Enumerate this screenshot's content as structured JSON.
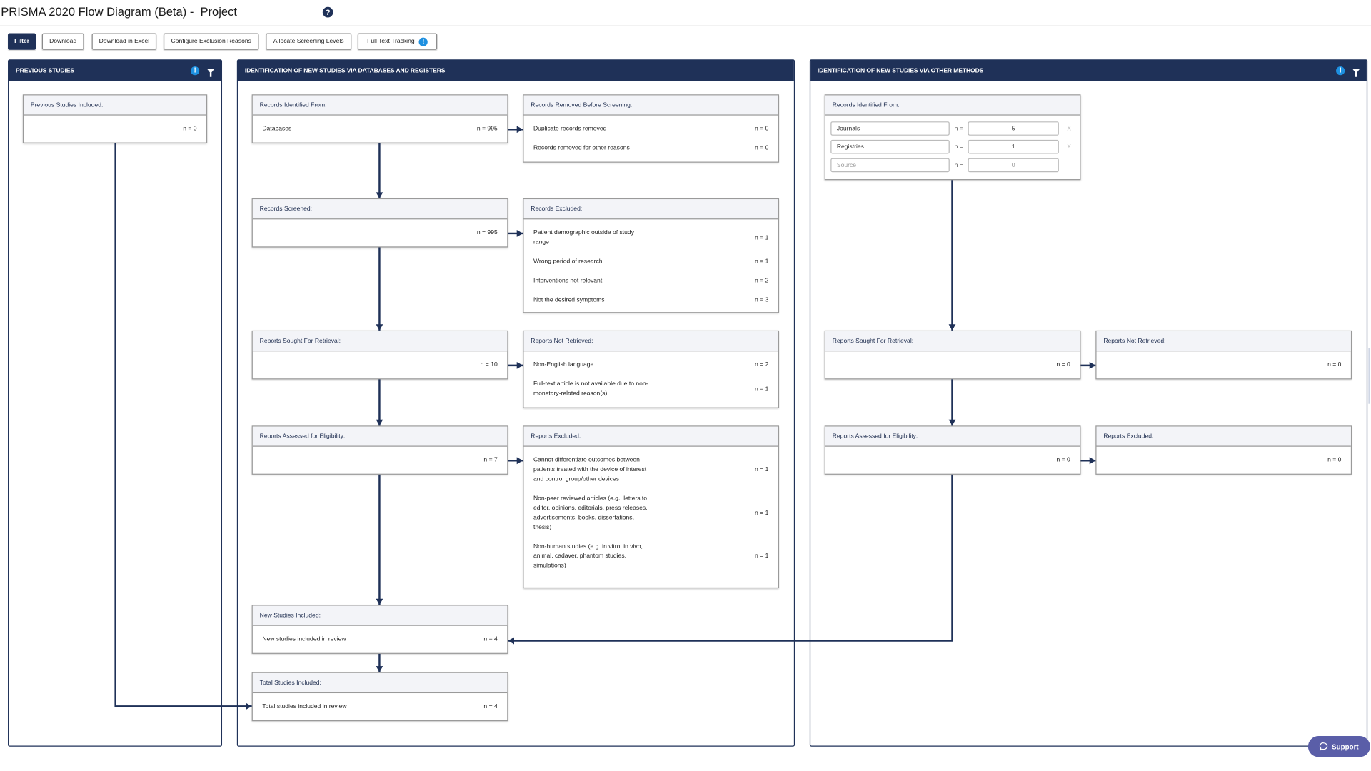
{
  "header": {
    "title": "PRISMA 2020 Flow Diagram (Beta) -  Project",
    "help_icon": "question-circle-icon"
  },
  "toolbar": {
    "buttons": [
      "Filter",
      "Download",
      "Download in Excel",
      "Configure Exclusion Reasons",
      "Allocate Screening Levels",
      "Full Text Tracking"
    ],
    "info_icon": "!"
  },
  "panels": {
    "previous": "PREVIOUS STUDIES",
    "databases": "IDENTIFICATION OF NEW STUDIES VIA DATABASES AND REGISTERS",
    "other": "IDENTIFICATION OF NEW STUDIES VIA OTHER METHODS"
  },
  "boxes": {
    "prev_included": {
      "title": "Previous Studies Included:",
      "rows": [
        {
          "label": "",
          "n": "n = 0"
        }
      ]
    },
    "db_identified": {
      "title": "Records Identified From:",
      "rows": [
        {
          "label": "Databases",
          "n": "n = 995"
        }
      ]
    },
    "db_removed": {
      "title": "Records Removed Before Screening:",
      "rows": [
        {
          "label": "Duplicate records removed",
          "n": "n = 0"
        },
        {
          "label": "Records removed for other reasons",
          "n": "n = 0"
        }
      ]
    },
    "db_screened": {
      "title": "Records Screened:",
      "rows": [
        {
          "label": "",
          "n": "n = 995"
        }
      ]
    },
    "db_excluded": {
      "title": "Records Excluded:",
      "rows": [
        {
          "label": "Patient demographic outside of study range",
          "n": "n = 1"
        },
        {
          "label": "Wrong period of research",
          "n": "n = 1"
        },
        {
          "label": "Interventions not relevant",
          "n": "n = 2"
        },
        {
          "label": "Not the desired symptoms",
          "n": "n = 3"
        }
      ]
    },
    "db_sought": {
      "title": "Reports Sought For Retrieval:",
      "rows": [
        {
          "label": "",
          "n": "n = 10"
        }
      ]
    },
    "db_not_retrieved": {
      "title": "Reports Not Retrieved:",
      "rows": [
        {
          "label": "Non-English language",
          "n": "n = 2"
        },
        {
          "label": "Full-text article is not available due to non-monetary-related reason(s)",
          "n": "n = 1"
        }
      ]
    },
    "db_assessed": {
      "title": "Reports Assessed for Eligibility:",
      "rows": [
        {
          "label": "",
          "n": "n = 7"
        }
      ]
    },
    "db_reports_excluded": {
      "title": "Reports Excluded:",
      "rows": [
        {
          "label": "Cannot differentiate outcomes between patients treated with the device of interest and control group/other devices",
          "n": "n = 1"
        },
        {
          "label": "Non-peer reviewed articles (e.g., letters to editor, opinions, editorials, press releases, advertisements, books, dissertations, thesis)",
          "n": "n = 1"
        },
        {
          "label": "Non-human studies (e.g. in vitro, in vivo, animal, cadaver, phantom studies, simulations)",
          "n": "n = 1"
        }
      ]
    },
    "new_included": {
      "title": "New Studies Included:",
      "rows": [
        {
          "label": "New studies included in review",
          "n": "n = 4"
        }
      ]
    },
    "total_included": {
      "title": "Total Studies Included:",
      "rows": [
        {
          "label": "Total studies included in review",
          "n": "n = 4"
        }
      ]
    },
    "oth_sought": {
      "title": "Reports Sought For Retrieval:",
      "rows": [
        {
          "label": "",
          "n": "n = 0"
        }
      ]
    },
    "oth_not_retrieved": {
      "title": "Reports Not Retrieved:",
      "rows": [
        {
          "label": "",
          "n": "n = 0"
        }
      ]
    },
    "oth_assessed": {
      "title": "Reports Assessed for Eligibility:",
      "rows": [
        {
          "label": "",
          "n": "n = 0"
        }
      ]
    },
    "oth_excluded": {
      "title": "Reports Excluded:",
      "rows": [
        {
          "label": "",
          "n": "n = 0"
        }
      ]
    }
  },
  "other_identified": {
    "title": "Records Identified From:",
    "n_label": "n =",
    "remove_label": "X",
    "sources": [
      {
        "name": "Journals",
        "value": "5",
        "removable": true
      },
      {
        "name": "Registries",
        "value": "1",
        "removable": true
      },
      {
        "name": "",
        "placeholder": "Source",
        "value": "",
        "value_placeholder": "0",
        "removable": false
      }
    ]
  },
  "support": {
    "label": "Support",
    "icon": "chat-bubble-icon"
  },
  "colors": {
    "navy": "#1f3158",
    "info_blue": "#1e90e0",
    "support": "#5a5ea8"
  }
}
